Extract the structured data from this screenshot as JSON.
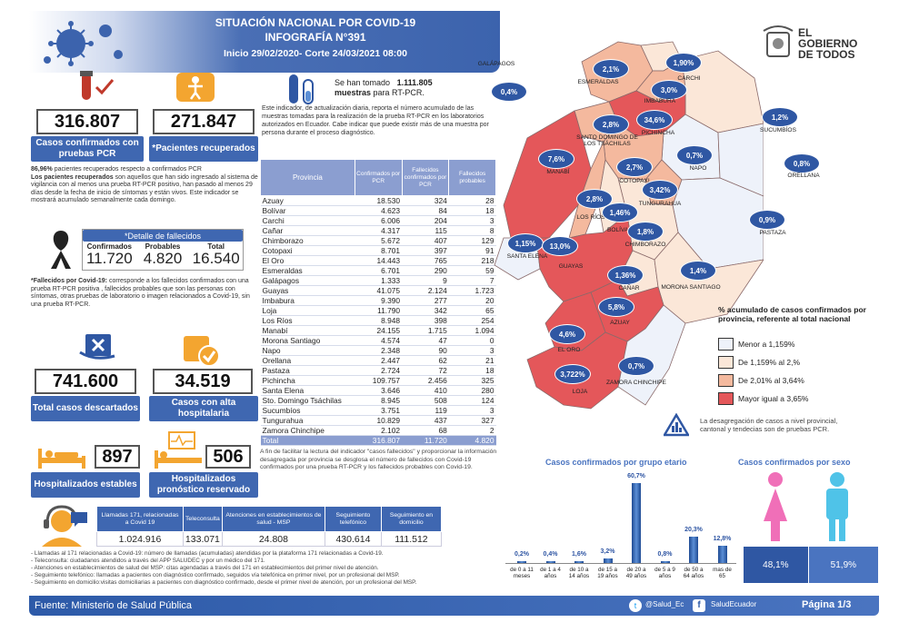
{
  "header": {
    "line1": "SITUACIÓN NACIONAL POR  COVID-19",
    "line2": "INFOGRAFÍA N°391",
    "line3": "Inicio 29/02/2020- Corte 24/03/2021 08:00"
  },
  "logo": {
    "line1": "EL",
    "line2": "GOBIERNO",
    "line3": "DE TODOS"
  },
  "confirmed": {
    "value": "316.807",
    "label": "Casos confirmados con pruebas PCR"
  },
  "recovered": {
    "value": "271.847",
    "label": "*Pacientes recuperados"
  },
  "recovered_note": {
    "pct": "86,96%",
    "text1": " pacientes recuperados respecto a confirmados PCR",
    "bold": "Los pacientes recuperados",
    "text2": " son aquellos que han sido ingresado al sistema de vigilancia con al menos una prueba RT-PCR positivo, han pasado al menos 29 días desde la fecha de inicio de síntomas y están vivos. Este indicador se mostrará acumulado semanalmente cada domingo."
  },
  "deaths": {
    "title": "*Detalle de fallecidos",
    "h1": "Confirmados",
    "h2": "Probables",
    "h3": "Total",
    "v1": "11.720",
    "v2": "4.820",
    "v3": "16.540"
  },
  "deaths_note": {
    "bold": "*Fallecidos por Covid-19:",
    "text": " corresponde a los fallecidos confirmados con una prueba RT-PCR positiva , fallecidos probables que son las personas con síntomas, otras pruebas de laboratorio o imagen relacionados a Covid-19, sin una prueba RT-PCR."
  },
  "discarded": {
    "value": "741.600",
    "label": "Total casos descartados"
  },
  "discharged": {
    "value": "34.519",
    "label": "Casos con alta hospitalaria"
  },
  "hosp_stable": {
    "value": "897",
    "label": "Hospitalizados estables"
  },
  "hosp_reserved": {
    "value": "506",
    "label": "Hospitalizados pronóstico reservado"
  },
  "samples": {
    "pre": "Se han tomado",
    "value": "1.111.805",
    "bold2": "muestras",
    "post": " para RT-PCR."
  },
  "samples_note": "Este indicador, de actualización diaria, reporta el número acumulado de las muestras tomadas para la realización de la prueba RT-PCR en los laboratorios autorizados en Ecuador. Cabe indicar que puede existir más de una muestra por persona durante el proceso diagnóstico.",
  "province_table": {
    "headers": [
      "Provincia",
      "Confirmados por PCR",
      "Fallecidos confirmados por PCR",
      "Fallecidos probables"
    ],
    "rows": [
      [
        "Azuay",
        "18.530",
        "324",
        "28"
      ],
      [
        "Bolívar",
        "4.623",
        "84",
        "18"
      ],
      [
        "Carchi",
        "6.006",
        "204",
        "3"
      ],
      [
        "Cañar",
        "4.317",
        "115",
        "8"
      ],
      [
        "Chimborazo",
        "5.672",
        "407",
        "129"
      ],
      [
        "Cotopaxi",
        "8.701",
        "397",
        "91"
      ],
      [
        "El Oro",
        "14.443",
        "765",
        "218"
      ],
      [
        "Esmeraldas",
        "6.701",
        "290",
        "59"
      ],
      [
        "Galápagos",
        "1.333",
        "9",
        "7"
      ],
      [
        "Guayas",
        "41.075",
        "2.124",
        "1.723"
      ],
      [
        "Imbabura",
        "9.390",
        "277",
        "20"
      ],
      [
        "Loja",
        "11.790",
        "342",
        "65"
      ],
      [
        "Los Ríos",
        "8.948",
        "398",
        "254"
      ],
      [
        "Manabí",
        "24.155",
        "1.715",
        "1.094"
      ],
      [
        "Morona Santiago",
        "4.574",
        "47",
        "0"
      ],
      [
        "Napo",
        "2.348",
        "90",
        "3"
      ],
      [
        "Orellana",
        "2.447",
        "62",
        "21"
      ],
      [
        "Pastaza",
        "2.724",
        "72",
        "18"
      ],
      [
        "Pichincha",
        "109.757",
        "2.456",
        "325"
      ],
      [
        "Santa Elena",
        "3.646",
        "410",
        "280"
      ],
      [
        "Sto. Domingo Tsáchilas",
        "8.945",
        "508",
        "124"
      ],
      [
        "Sucumbíos",
        "3.751",
        "119",
        "3"
      ],
      [
        "Tungurahua",
        "10.829",
        "437",
        "327"
      ],
      [
        "Zamora Chinchipe",
        "2.102",
        "68",
        "2"
      ]
    ],
    "total": [
      "Total",
      "316.807",
      "11.720",
      "4.820"
    ]
  },
  "deaths_footnote": "A fin de facilitar la lectura del indicador \"casos fallecidos\" y proporcionar la información desagregada por provincia se desglosa el número de fallecidos con Covid-19 confirmados por una prueba RT-PCR y los fallecidos probables con Covid-19.",
  "calls_table": {
    "headers": [
      "Llamadas 171, relacionadas a Covid 19",
      "Teleconsulta",
      "Atenciones en establecimientos de salud - MSP",
      "Seguimiento telefónico",
      "Seguimiento en domicilio"
    ],
    "values": [
      "1.024.916",
      "133.071",
      "24.808",
      "430.614",
      "111.512"
    ]
  },
  "calls_notes": [
    "- Llamadas al 171 relacionadas a Covid-19: número de llamadas (acumuladas) atendidas por la plataforma 171 relacionadas a Covid-19.",
    "- Teleconsulta: ciudadanos atendidos a través del APP SALUDEC y por un médico del 171.",
    "- Atenciones en establecimientos de salud del MSP: citas agendadas a través del 171 en establecimientos del primer nivel de atención.",
    "- Seguimiento telefónico: llamadas a pacientes con diagnóstico confirmado, seguidos vía telefónica en primer nivel, por un profesional del MSP.",
    "- Seguimiento en domicilio:visitas domiciliarias a pacientes con diagnóstico confirmado, desde el primer nivel de atención, por un profesional del MSP."
  ],
  "map": {
    "provinces": [
      {
        "name": "GALÁPAGOS",
        "pct": "0,4%"
      },
      {
        "name": "ESMERALDAS",
        "pct": "2,1%"
      },
      {
        "name": "CARCHI",
        "pct": "1,90%"
      },
      {
        "name": "IMBABURA",
        "pct": "3,0%"
      },
      {
        "name": "SUCUMBÍOS",
        "pct": "1,2%"
      },
      {
        "name": "SANTO DOMINGO DE LOS TSÁCHILAS",
        "pct": "2,8%"
      },
      {
        "name": "PICHINCHA",
        "pct": "34,6%"
      },
      {
        "name": "MANABÍ",
        "pct": "7,6%"
      },
      {
        "name": "NAPO",
        "pct": "0,7%"
      },
      {
        "name": "ORELLANA",
        "pct": "0,8%"
      },
      {
        "name": "COTOPAXI",
        "pct": "2,7%"
      },
      {
        "name": "LOS RÍOS",
        "pct": "2,8%"
      },
      {
        "name": "TUNGURAHUA",
        "pct": "3,42%"
      },
      {
        "name": "BOLÍVAR",
        "pct": "1,46%"
      },
      {
        "name": "PASTAZA",
        "pct": "0,9%"
      },
      {
        "name": "CHIMBORAZO",
        "pct": "1,8%"
      },
      {
        "name": "SANTA ELENA",
        "pct": "1,15%"
      },
      {
        "name": "GUAYAS",
        "pct": "13,0%"
      },
      {
        "name": "CAÑAR",
        "pct": "1,36%"
      },
      {
        "name": "MORONA SANTIAGO",
        "pct": "1,4%"
      },
      {
        "name": "AZUAY",
        "pct": "5,8%"
      },
      {
        "name": "EL ORO",
        "pct": "4,6%"
      },
      {
        "name": "LOJA",
        "pct": "3,722%"
      },
      {
        "name": "ZAMORA CHINCHIPE",
        "pct": "0,7%"
      }
    ],
    "legend_title": "% acumulado de casos confirmados por provincia, referente al total nacional",
    "legend": [
      {
        "label": "Menor a 1,159%",
        "color": "#eef2fa"
      },
      {
        "label": "De 1,159% al 2,%",
        "color": "#fbe7d8"
      },
      {
        "label": "De 2,01% al 3,64%",
        "color": "#f4b99e"
      },
      {
        "label": "Mayor igual a 3,65%",
        "color": "#e4575a"
      }
    ],
    "note": "La desagregación de casos a nivel provincial, cantonal y tendecias son  de pruebas PCR."
  },
  "age_chart": {
    "title": "Casos confirmados por grupo etario"
  },
  "sex_chart": {
    "title": "Casos confirmados por sexo",
    "female": "48,1%",
    "male": "51,9%",
    "colors": {
      "female": "#f06fb8",
      "male": "#4fc3e8"
    }
  },
  "chart_data": {
    "type": "bar",
    "title": "Casos confirmados por grupo etario",
    "categories": [
      "de 0 a 11 meses",
      "de 1 a 4 años",
      "de 10 a 14 años",
      "de 15 a 19 años",
      "de 20 a 49 años",
      "de 5 a 9 años",
      "de 50 a 64 años",
      "mas de 65"
    ],
    "labels": [
      "0,2%",
      "0,4%",
      "1,6%",
      "3,2%",
      "60,7%",
      "0,8%",
      "20,3%",
      "12,8%"
    ],
    "values": [
      0.2,
      0.4,
      1.6,
      3.2,
      60.7,
      0.8,
      20.3,
      12.8
    ],
    "ylim": [
      0,
      62
    ]
  },
  "footer": {
    "source": "Fuente:  Ministerio de Salud Pública",
    "twitter": "@Salud_Ec",
    "facebook": "SaludEcuador",
    "page": "Página 1/3"
  }
}
